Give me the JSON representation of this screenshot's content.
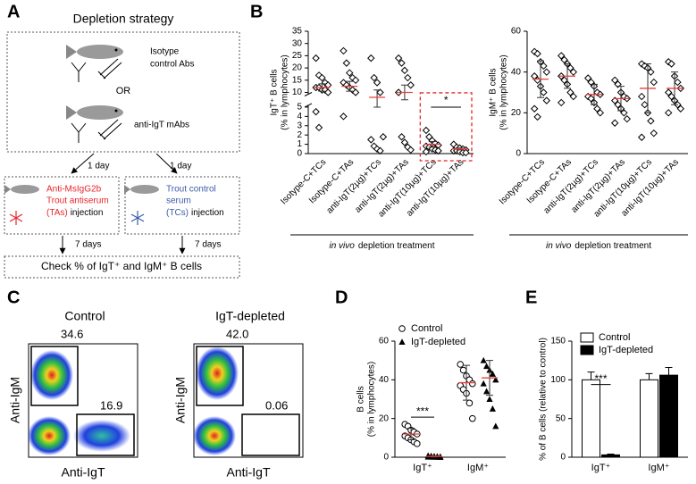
{
  "panel_labels": [
    "A",
    "B",
    "C",
    "D",
    "E"
  ],
  "diagram": {
    "title": "Depletion strategy",
    "isotype": [
      "Isotype",
      "control Abs"
    ],
    "or": "OR",
    "anti": "anti-IgT mAbs",
    "day_left": "1 day",
    "day_right": "1 day",
    "left_box": {
      "lines": [
        "Anti-MsIgG2b",
        "Trout antiserum"
      ],
      "abbr": "(TAs)",
      "suffix": "injection"
    },
    "right_box": {
      "lines": [
        "Trout control",
        "serum"
      ],
      "abbr": "(TCs)",
      "suffix": "injection"
    },
    "days_left": "7 days",
    "days_right": "7 days",
    "check": "Check % of IgT⁺ and IgM⁺ B cells"
  },
  "flow": {
    "y_label": "Anti-IgM",
    "x_label": "Anti-IgT",
    "plots": [
      {
        "title": "Control",
        "gates": [
          "34.6",
          "16.9"
        ]
      },
      {
        "title": "IgT-depleted",
        "gates": [
          "42.0",
          "0.06"
        ]
      }
    ]
  },
  "chart_data": [
    {
      "type": "dot",
      "y_label": [
        "IgT⁺ B cells",
        "(% in lymphocytes)"
      ],
      "categories": [
        "Isotype-C+TCs",
        "Isotype-C+TAs",
        "anti-IgT(2µg)+TCs",
        "anti-IgT(2µg)+TAs",
        "anti-IgT(10µg)+TCs",
        "anti-IgT(10µg)+TAs"
      ],
      "marker": "diamond",
      "color": "#000000",
      "mean_color": "#e8413c",
      "error_color": "#333333",
      "values": [
        [
          24,
          17,
          16,
          14,
          13,
          12,
          12,
          11,
          11,
          10,
          4.5,
          2.8
        ],
        [
          27,
          22,
          18,
          16,
          15,
          14,
          13,
          12,
          11,
          10,
          4.0
        ],
        [
          24,
          16,
          14,
          10,
          1.8,
          1.5,
          0.8,
          0.5,
          0.3
        ],
        [
          24,
          22,
          19,
          16,
          13,
          10,
          1.8,
          1.2,
          0.7,
          0.4
        ],
        [
          2.5,
          1.8,
          1.4,
          1.1,
          0.9,
          0.8,
          0.7,
          0.5,
          0.4,
          0.3,
          0.2
        ],
        [
          1.0,
          0.7,
          0.6,
          0.5,
          0.4,
          0.3,
          0.3,
          0.2,
          0.1,
          0.1
        ]
      ],
      "means": [
        12,
        12.5,
        8,
        10,
        1,
        0.5
      ],
      "errors": [
        1.5,
        2,
        3,
        3,
        0.3,
        0.1
      ],
      "ylim": [
        0,
        35
      ],
      "axis_break": [
        5,
        10
      ],
      "yticks": [
        0,
        1,
        2,
        3,
        4,
        5,
        10,
        15,
        20,
        25,
        30,
        35
      ],
      "annotation": "*",
      "highlight_color": "#e8252a",
      "x_caption": {
        "italic": "in vivo",
        "text": "depletion treatment"
      }
    },
    {
      "type": "dot",
      "y_label": [
        "IgM⁺ B cells",
        "(% in lymphocytes)"
      ],
      "categories": [
        "Isotype-C+TCs",
        "Isotype-C+TAs",
        "anti-IgT(2µg)+TCs",
        "anti-IgT(2µg)+TAs",
        "anti-IgT(10µg)+TCs",
        "anti-IgT(10µg)+TAs"
      ],
      "marker": "diamond",
      "color": "#000000",
      "mean_color": "#e8413c",
      "error_color": "#333333",
      "values": [
        [
          50,
          49,
          45,
          43,
          40,
          38,
          36,
          33,
          30,
          26,
          22,
          18
        ],
        [
          48,
          46,
          44,
          42,
          40,
          38,
          36,
          34,
          30,
          28,
          25
        ],
        [
          37,
          35,
          33,
          30,
          29,
          28,
          27,
          25,
          22,
          20
        ],
        [
          36,
          34,
          30,
          28,
          27,
          26,
          24,
          22,
          20,
          17,
          15
        ],
        [
          44,
          43,
          42,
          40,
          35,
          28,
          24,
          20,
          16,
          10,
          8
        ],
        [
          45,
          44,
          38,
          35,
          32,
          30,
          28,
          26,
          24,
          22,
          20
        ]
      ],
      "means": [
        36.5,
        38,
        29,
        27,
        32,
        32
      ],
      "errors": [
        9,
        6,
        5,
        6,
        12,
        8
      ],
      "ylim": [
        0,
        60
      ],
      "yticks": [
        0,
        20,
        40,
        60
      ],
      "x_caption": {
        "italic": "in vivo",
        "text": "depletion treatment"
      }
    },
    {
      "type": "dot",
      "y_label": [
        "B cells",
        "(% in lymphocytes)"
      ],
      "categories": [
        "IgT⁺",
        "IgM⁺"
      ],
      "mean_color": "#e8413c",
      "error_color": "#333333",
      "series": [
        {
          "name": "Control",
          "marker": "circle",
          "color": "#000000",
          "values": [
            [
              17,
              16,
              14,
              13,
              12,
              11,
              10,
              9,
              8,
              7
            ],
            [
              48,
              45,
              42,
              40,
              38,
              37,
              35,
              33,
              28,
              20
            ]
          ],
          "means": [
            12,
            38.5
          ],
          "errors": [
            3,
            9
          ]
        },
        {
          "name": "IgT-depleted",
          "marker": "triangle",
          "color": "#000000",
          "values": [
            [
              0.8,
              0.6,
              0.5,
              0.4,
              0.3,
              0.2,
              0.2,
              0.1,
              0.1,
              0
            ],
            [
              50,
              47,
              45,
              43,
              40,
              38,
              34,
              30,
              25,
              16
            ]
          ],
          "means": [
            0.4,
            41
          ],
          "errors": [
            0.3,
            9
          ]
        }
      ],
      "ylim": [
        0,
        60
      ],
      "yticks": [
        0,
        20,
        40,
        60
      ],
      "annotation": "***"
    },
    {
      "type": "bar",
      "y_label": "% of B cells (relative to control)",
      "categories": [
        "IgT⁺",
        "IgM⁺"
      ],
      "series": [
        {
          "name": "Control",
          "color": "#ffffff",
          "values": [
            100,
            100
          ],
          "errors": [
            10,
            8
          ]
        },
        {
          "name": "IgT-depleted",
          "color": "#000000",
          "values": [
            3,
            106
          ],
          "errors": [
            1,
            10
          ]
        }
      ],
      "ylim": [
        0,
        150
      ],
      "yticks": [
        0,
        50,
        100,
        150
      ],
      "annotation": "***"
    }
  ]
}
